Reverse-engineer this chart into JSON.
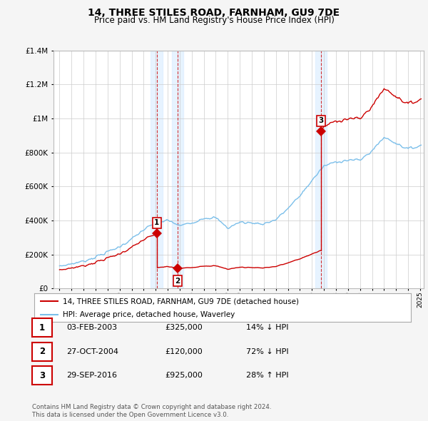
{
  "title": "14, THREE STILES ROAD, FARNHAM, GU9 7DE",
  "subtitle": "Price paid vs. HM Land Registry's House Price Index (HPI)",
  "legend_line1": "14, THREE STILES ROAD, FARNHAM, GU9 7DE (detached house)",
  "legend_line2": "HPI: Average price, detached house, Waverley",
  "transactions": [
    {
      "num": 1,
      "date": "03-FEB-2003",
      "price": 325000,
      "hpi_pct": "14% ↓ HPI",
      "year": 2003.09
    },
    {
      "num": 2,
      "date": "27-OCT-2004",
      "price": 120000,
      "hpi_pct": "72% ↓ HPI",
      "year": 2004.83
    },
    {
      "num": 3,
      "date": "29-SEP-2016",
      "price": 925000,
      "hpi_pct": "28% ↑ HPI",
      "year": 2016.75
    }
  ],
  "hpi_color": "#7bbfea",
  "sale_color": "#cc0000",
  "background_color": "#f5f5f5",
  "plot_bg": "#ffffff",
  "shade_color": "#ddeeff",
  "ylim": [
    0,
    1400000
  ],
  "yticks": [
    0,
    200000,
    400000,
    600000,
    800000,
    1000000,
    1200000,
    1400000
  ],
  "xlim_start": 1994.5,
  "xlim_end": 2025.3,
  "footer": "Contains HM Land Registry data © Crown copyright and database right 2024.\nThis data is licensed under the Open Government Licence v3.0.",
  "hpi_anchors_years": [
    1995,
    1996,
    1997,
    1998,
    1999,
    2000,
    2001,
    2002,
    2003,
    2004,
    2005,
    2006,
    2007,
    2008,
    2009,
    2010,
    2011,
    2012,
    2013,
    2014,
    2015,
    2016,
    2017,
    2018,
    2019,
    2020,
    2021,
    2022,
    2023,
    2024,
    2025
  ],
  "hpi_anchors_vals": [
    130000,
    145000,
    160000,
    185000,
    215000,
    245000,
    290000,
    345000,
    385000,
    400000,
    370000,
    385000,
    415000,
    415000,
    355000,
    390000,
    385000,
    380000,
    405000,
    470000,
    545000,
    635000,
    720000,
    745000,
    755000,
    755000,
    810000,
    890000,
    855000,
    820000,
    840000
  ],
  "red_flat_start": 1995.0,
  "red_flat_end": 2025.0
}
